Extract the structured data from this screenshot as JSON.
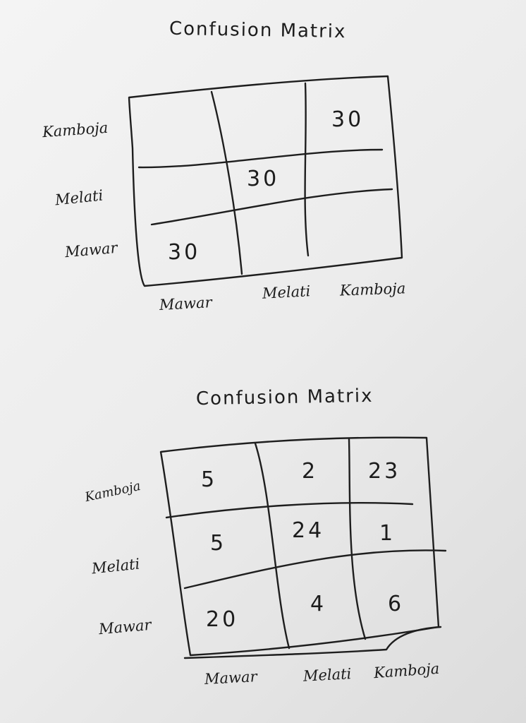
{
  "matrices": [
    {
      "title": "Confusion Matrix",
      "row_labels": [
        "Kamboja",
        "Melati",
        "Mawar"
      ],
      "col_labels": [
        "Mawar",
        "Melati",
        "Kamboja"
      ],
      "cells": [
        [
          "",
          "",
          "30"
        ],
        [
          "",
          "30",
          ""
        ],
        [
          "30",
          "",
          ""
        ]
      ]
    },
    {
      "title": "Confusion Matrix",
      "row_labels": [
        "Kamboja",
        "Melati",
        "Mawar"
      ],
      "col_labels": [
        "Mawar",
        "Melati",
        "Kamboja"
      ],
      "cells": [
        [
          "5",
          "2",
          "23"
        ],
        [
          "5",
          "24",
          "1"
        ],
        [
          "20",
          "4",
          "6"
        ]
      ]
    }
  ]
}
